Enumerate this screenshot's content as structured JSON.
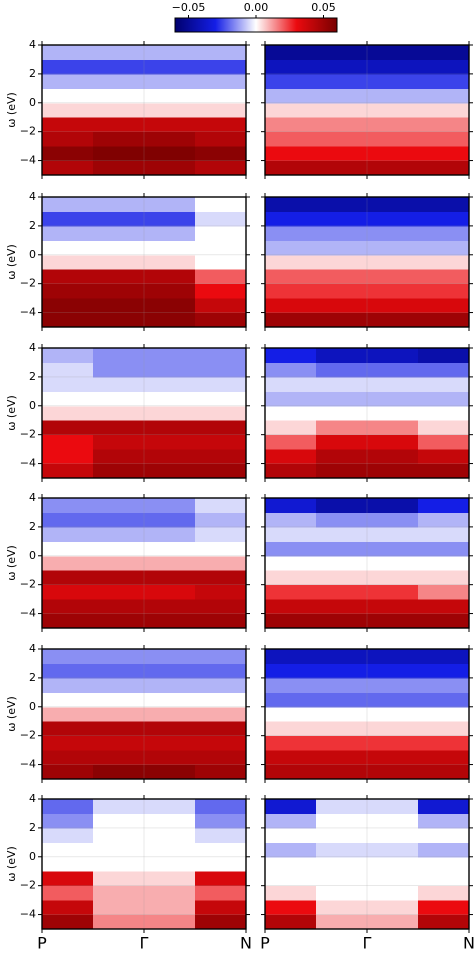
{
  "chart_data": [
    {
      "type": "heatmap",
      "x": [
        0,
        0.5,
        1
      ],
      "y": [
        -4.5,
        -3.5,
        -2.5,
        -1.5,
        -0.5,
        0.5,
        1.5,
        2.5,
        3.5
      ],
      "xlim": [
        0,
        1
      ],
      "ylim": [
        -5,
        4
      ],
      "clim": [
        -0.06,
        0.06
      ],
      "grid": true,
      "xticks": [
        0,
        0.5,
        1
      ],
      "ylabel": "ω (eV)",
      "yticks": [
        {
          "value": -4,
          "label": "−4"
        },
        {
          "value": -2,
          "label": "−2"
        },
        0,
        2,
        4
      ],
      "values": [
        [
          0.045,
          0.05,
          0.045
        ],
        [
          0.055,
          0.058,
          0.055
        ],
        [
          0.045,
          0.05,
          0.045
        ],
        [
          0.04,
          0.04,
          0.04
        ],
        [
          0.005,
          0.005,
          0.005
        ],
        [
          0,
          0,
          0
        ],
        [
          -0.01,
          -0.01,
          -0.01
        ],
        [
          -0.025,
          -0.025,
          -0.025
        ],
        [
          -0.01,
          -0.01,
          -0.01
        ]
      ]
    },
    {
      "type": "heatmap",
      "x": [
        0,
        0.5,
        1
      ],
      "y": [
        -4.5,
        -3.5,
        -2.5,
        -1.5,
        -0.5,
        0.5,
        1.5,
        2.5,
        3.5
      ],
      "xlim": [
        0,
        1
      ],
      "ylim": [
        -5,
        4
      ],
      "clim": [
        -0.06,
        0.06
      ],
      "grid": true,
      "xticks": [
        0,
        0.5,
        1
      ],
      "yticks": [
        -4,
        -2,
        0,
        2,
        4
      ],
      "values": [
        [
          0.045,
          0.045,
          0.045
        ],
        [
          0.03,
          0.03,
          0.03
        ],
        [
          0.02,
          0.02,
          0.02
        ],
        [
          0.015,
          0.015,
          0.015
        ],
        [
          0.005,
          0.005,
          0.005
        ],
        [
          -0.01,
          -0.01,
          -0.01
        ],
        [
          -0.025,
          -0.025,
          -0.025
        ],
        [
          -0.04,
          -0.04,
          -0.04
        ],
        [
          -0.05,
          -0.05,
          -0.05
        ]
      ]
    },
    {
      "type": "heatmap",
      "x": [
        0,
        0.5,
        1
      ],
      "y": [
        -4.5,
        -3.5,
        -2.5,
        -1.5,
        -0.5,
        0.5,
        1.5,
        2.5,
        3.5
      ],
      "xlim": [
        0,
        1
      ],
      "ylim": [
        -5,
        4
      ],
      "clim": [
        -0.06,
        0.06
      ],
      "grid": true,
      "xticks": [
        0,
        0.5,
        1
      ],
      "ylabel": "ω (eV)",
      "yticks": [
        {
          "value": -4,
          "label": "−4"
        },
        {
          "value": -2,
          "label": "−2"
        },
        0,
        2,
        4
      ],
      "values": [
        [
          0.055,
          0.055,
          0.05
        ],
        [
          0.055,
          0.055,
          0.04
        ],
        [
          0.05,
          0.05,
          0.03
        ],
        [
          0.045,
          0.045,
          0.02
        ],
        [
          0.005,
          0.005,
          0
        ],
        [
          0,
          0,
          0
        ],
        [
          -0.01,
          -0.01,
          0
        ],
        [
          -0.025,
          -0.025,
          -0.005
        ],
        [
          -0.01,
          -0.01,
          0
        ]
      ]
    },
    {
      "type": "heatmap",
      "x": [
        0,
        0.5,
        1
      ],
      "y": [
        -4.5,
        -3.5,
        -2.5,
        -1.5,
        -0.5,
        0.5,
        1.5,
        2.5,
        3.5
      ],
      "xlim": [
        0,
        1
      ],
      "ylim": [
        -5,
        4
      ],
      "clim": [
        -0.06,
        0.06
      ],
      "grid": true,
      "xticks": [
        0,
        0.5,
        1
      ],
      "yticks": [
        -4,
        -2,
        0,
        2,
        4
      ],
      "values": [
        [
          0.05,
          0.05,
          0.05
        ],
        [
          0.035,
          0.035,
          0.035
        ],
        [
          0.025,
          0.025,
          0.025
        ],
        [
          0.02,
          0.02,
          0.02
        ],
        [
          0.005,
          0.005,
          0.005
        ],
        [
          -0.01,
          -0.01,
          -0.01
        ],
        [
          -0.015,
          -0.015,
          -0.015
        ],
        [
          -0.03,
          -0.03,
          -0.03
        ],
        [
          -0.045,
          -0.045,
          -0.045
        ]
      ]
    },
    {
      "type": "heatmap",
      "x": [
        0,
        0.5,
        1
      ],
      "y": [
        -4.5,
        -3.5,
        -2.5,
        -1.5,
        -0.5,
        0.5,
        1.5,
        2.5,
        3.5
      ],
      "xlim": [
        0,
        1
      ],
      "ylim": [
        -5,
        4
      ],
      "clim": [
        -0.06,
        0.06
      ],
      "grid": true,
      "xticks": [
        0,
        0.5,
        1
      ],
      "ylabel": "ω (eV)",
      "yticks": [
        {
          "value": -4,
          "label": "−4"
        },
        {
          "value": -2,
          "label": "−2"
        },
        0,
        2,
        4
      ],
      "values": [
        [
          0.04,
          0.05,
          0.05
        ],
        [
          0.03,
          0.045,
          0.045
        ],
        [
          0.03,
          0.04,
          0.04
        ],
        [
          0.045,
          0.045,
          0.045
        ],
        [
          0.005,
          0.005,
          0.005
        ],
        [
          0,
          0,
          0
        ],
        [
          -0.005,
          -0.005,
          -0.005
        ],
        [
          -0.005,
          -0.015,
          -0.015
        ],
        [
          -0.01,
          -0.015,
          -0.015
        ]
      ]
    },
    {
      "type": "heatmap",
      "x": [
        0,
        0.5,
        1
      ],
      "y": [
        -4.5,
        -3.5,
        -2.5,
        -1.5,
        -0.5,
        0.5,
        1.5,
        2.5,
        3.5
      ],
      "xlim": [
        0,
        1
      ],
      "ylim": [
        -5,
        4
      ],
      "clim": [
        -0.06,
        0.06
      ],
      "grid": true,
      "xticks": [
        0,
        0.5,
        1
      ],
      "yticks": [
        -4,
        -2,
        0,
        2,
        4
      ],
      "values": [
        [
          0.045,
          0.05,
          0.05
        ],
        [
          0.035,
          0.045,
          0.04
        ],
        [
          0.02,
          0.035,
          0.02
        ],
        [
          0.005,
          0.015,
          0.005
        ],
        [
          0,
          0,
          0
        ],
        [
          -0.01,
          -0.01,
          -0.01
        ],
        [
          -0.005,
          -0.005,
          -0.005
        ],
        [
          -0.015,
          -0.02,
          -0.02
        ],
        [
          -0.03,
          -0.04,
          -0.045
        ]
      ]
    },
    {
      "type": "heatmap",
      "x": [
        0,
        0.5,
        1
      ],
      "y": [
        -4.5,
        -3.5,
        -2.5,
        -1.5,
        -0.5,
        0.5,
        1.5,
        2.5,
        3.5
      ],
      "xlim": [
        0,
        1
      ],
      "ylim": [
        -5,
        4
      ],
      "clim": [
        -0.06,
        0.06
      ],
      "grid": true,
      "xticks": [
        0,
        0.5,
        1
      ],
      "ylabel": "ω (eV)",
      "yticks": [
        {
          "value": -4,
          "label": "−4"
        },
        {
          "value": -2,
          "label": "−2"
        },
        0,
        2,
        4
      ],
      "values": [
        [
          0.05,
          0.05,
          0.05
        ],
        [
          0.045,
          0.045,
          0.045
        ],
        [
          0.035,
          0.035,
          0.04
        ],
        [
          0.045,
          0.045,
          0.045
        ],
        [
          0.01,
          0.01,
          0.01
        ],
        [
          0,
          0,
          0
        ],
        [
          -0.01,
          -0.01,
          -0.005
        ],
        [
          -0.02,
          -0.02,
          -0.01
        ],
        [
          -0.015,
          -0.015,
          -0.005
        ]
      ]
    },
    {
      "type": "heatmap",
      "x": [
        0,
        0.5,
        1
      ],
      "y": [
        -4.5,
        -3.5,
        -2.5,
        -1.5,
        -0.5,
        0.5,
        1.5,
        2.5,
        3.5
      ],
      "xlim": [
        0,
        1
      ],
      "ylim": [
        -5,
        4
      ],
      "clim": [
        -0.06,
        0.06
      ],
      "grid": true,
      "xticks": [
        0,
        0.5,
        1
      ],
      "yticks": [
        -4,
        -2,
        0,
        2,
        4
      ],
      "values": [
        [
          0.05,
          0.05,
          0.05
        ],
        [
          0.04,
          0.04,
          0.04
        ],
        [
          0.025,
          0.025,
          0.015
        ],
        [
          0.005,
          0.005,
          0.005
        ],
        [
          0,
          0,
          0
        ],
        [
          -0.015,
          -0.015,
          -0.015
        ],
        [
          -0.005,
          -0.005,
          -0.005
        ],
        [
          -0.01,
          -0.015,
          -0.01
        ],
        [
          -0.035,
          -0.045,
          -0.03
        ]
      ]
    },
    {
      "type": "heatmap",
      "x": [
        0,
        0.5,
        1
      ],
      "y": [
        -4.5,
        -3.5,
        -2.5,
        -1.5,
        -0.5,
        0.5,
        1.5,
        2.5,
        3.5
      ],
      "xlim": [
        0,
        1
      ],
      "ylim": [
        -5,
        4
      ],
      "clim": [
        -0.06,
        0.06
      ],
      "grid": true,
      "xticks": [
        0,
        0.5,
        1
      ],
      "ylabel": "ω (eV)",
      "yticks": [
        {
          "value": -4,
          "label": "−4"
        },
        {
          "value": -2,
          "label": "−2"
        },
        0,
        2,
        4
      ],
      "values": [
        [
          0.05,
          0.055,
          0.05
        ],
        [
          0.045,
          0.045,
          0.045
        ],
        [
          0.04,
          0.04,
          0.04
        ],
        [
          0.045,
          0.045,
          0.045
        ],
        [
          0.01,
          0.01,
          0.01
        ],
        [
          0,
          0,
          0
        ],
        [
          -0.01,
          -0.01,
          -0.01
        ],
        [
          -0.02,
          -0.02,
          -0.02
        ],
        [
          -0.015,
          -0.015,
          -0.015
        ]
      ]
    },
    {
      "type": "heatmap",
      "x": [
        0,
        0.5,
        1
      ],
      "y": [
        -4.5,
        -3.5,
        -2.5,
        -1.5,
        -0.5,
        0.5,
        1.5,
        2.5,
        3.5
      ],
      "xlim": [
        0,
        1
      ],
      "ylim": [
        -5,
        4
      ],
      "clim": [
        -0.06,
        0.06
      ],
      "grid": true,
      "xticks": [
        0,
        0.5,
        1
      ],
      "yticks": [
        -4,
        -2,
        0,
        2,
        4
      ],
      "values": [
        [
          0.045,
          0.045,
          0.045
        ],
        [
          0.04,
          0.04,
          0.04
        ],
        [
          0.025,
          0.025,
          0.025
        ],
        [
          0.005,
          0.005,
          0.005
        ],
        [
          0,
          0,
          0
        ],
        [
          -0.02,
          -0.02,
          -0.02
        ],
        [
          -0.015,
          -0.015,
          -0.015
        ],
        [
          -0.03,
          -0.03,
          -0.03
        ],
        [
          -0.04,
          -0.04,
          -0.04
        ]
      ]
    },
    {
      "type": "heatmap",
      "x": [
        0,
        0.5,
        1
      ],
      "y": [
        -4.5,
        -3.5,
        -2.5,
        -1.5,
        -0.5,
        0.5,
        1.5,
        2.5,
        3.5
      ],
      "xlim": [
        0,
        1
      ],
      "ylim": [
        -5,
        4
      ],
      "clim": [
        -0.06,
        0.06
      ],
      "grid": true,
      "xticks": [
        {
          "value": 0,
          "label": "P"
        },
        {
          "value": 0.5,
          "label": "Γ"
        },
        {
          "value": 1,
          "label": "N"
        }
      ],
      "ylabel": "ω (eV)",
      "yticks": [
        {
          "value": -4,
          "label": "−4"
        },
        {
          "value": -2,
          "label": "−2"
        },
        0,
        2,
        4
      ],
      "values": [
        [
          0.05,
          0.015,
          0.05
        ],
        [
          0.04,
          0.01,
          0.04
        ],
        [
          0.02,
          0.01,
          0.02
        ],
        [
          0.035,
          0.005,
          0.035
        ],
        [
          0,
          0,
          0
        ],
        [
          0,
          0,
          0
        ],
        [
          -0.005,
          0,
          -0.005
        ],
        [
          -0.015,
          0,
          -0.015
        ],
        [
          -0.02,
          -0.005,
          -0.02
        ]
      ]
    },
    {
      "type": "heatmap",
      "x": [
        0,
        0.5,
        1
      ],
      "y": [
        -4.5,
        -3.5,
        -2.5,
        -1.5,
        -0.5,
        0.5,
        1.5,
        2.5,
        3.5
      ],
      "xlim": [
        0,
        1
      ],
      "ylim": [
        -5,
        4
      ],
      "clim": [
        -0.06,
        0.06
      ],
      "grid": true,
      "xticks": [
        {
          "value": 0,
          "label": "P"
        },
        {
          "value": 0.5,
          "label": "Γ"
        },
        {
          "value": 1,
          "label": "N"
        }
      ],
      "yticks": [
        -4,
        -2,
        0,
        2,
        4
      ],
      "values": [
        [
          0.045,
          0.01,
          0.045
        ],
        [
          0.03,
          0.005,
          0.03
        ],
        [
          0.005,
          0,
          0.005
        ],
        [
          0,
          0,
          0
        ],
        [
          0,
          0,
          0
        ],
        [
          -0.01,
          -0.005,
          -0.01
        ],
        [
          0,
          0,
          0
        ],
        [
          -0.01,
          0,
          -0.01
        ],
        [
          -0.035,
          -0.005,
          -0.035
        ]
      ]
    },
    {
      "type": "colorbar",
      "clim": [
        -0.06,
        0.06
      ],
      "ticks": [
        {
          "value": -0.05,
          "label": "−0.05"
        },
        {
          "value": 0,
          "label": "0.00"
        },
        {
          "value": 0.05,
          "label": "0.05"
        }
      ]
    }
  ]
}
